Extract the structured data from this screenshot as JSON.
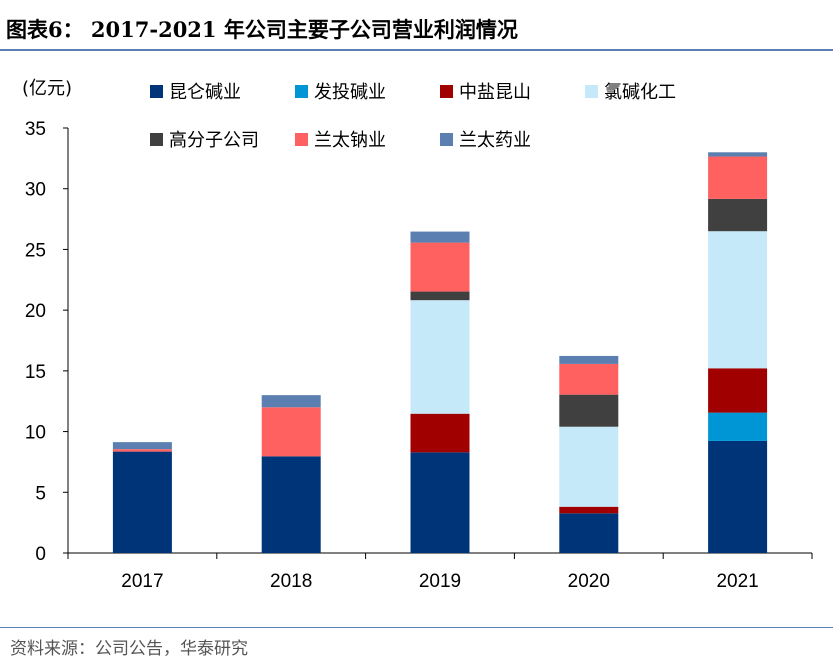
{
  "title": "图表6：   2017-2021 年公司主要子公司营业利润情况",
  "source": "资料来源：公司公告，华泰研究",
  "chart_data": {
    "type": "bar",
    "stacked": true,
    "ylabel": "(亿元)",
    "ylim": [
      0,
      35
    ],
    "yticks": [
      0,
      5,
      10,
      15,
      20,
      25,
      30,
      35
    ],
    "categories": [
      "2017",
      "2018",
      "2019",
      "2020",
      "2021"
    ],
    "legend_position": "top",
    "grid": false,
    "series": [
      {
        "name": "昆仑碱业",
        "color": "#003478",
        "values": [
          8.35,
          7.96,
          8.29,
          3.27,
          9.23
        ]
      },
      {
        "name": "发投碱业",
        "color": "#0096d6",
        "values": [
          0,
          0,
          0,
          0,
          2.33
        ]
      },
      {
        "name": "中盐昆山",
        "color": "#a00000",
        "values": [
          0,
          0,
          3.18,
          0.54,
          3.65
        ]
      },
      {
        "name": "氯碱化工",
        "color": "#c5e9f9",
        "values": [
          0,
          0,
          9.35,
          6.59,
          11.29
        ]
      },
      {
        "name": "高分子公司",
        "color": "#404040",
        "values": [
          0,
          0,
          0.71,
          2.64,
          2.66
        ]
      },
      {
        "name": "兰太钠业",
        "color": "#ff6161",
        "values": [
          0.2,
          4.04,
          4.03,
          2.53,
          3.49
        ]
      },
      {
        "name": "兰太药业",
        "color": "#5b7fb0",
        "values": [
          0.58,
          1.0,
          0.91,
          0.66,
          0.35
        ]
      }
    ]
  }
}
